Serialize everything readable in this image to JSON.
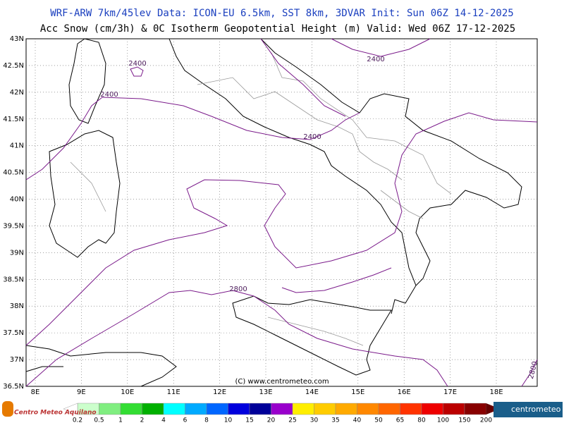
{
  "header": {
    "line1": "WRF-ARW 7km/45lev  Data: ICON-EU 6.5km, SST 8km, 3DVAR  Init: Sun 06Z 14-12-2025",
    "line2": "Acc Snow (cm/3h) & 0C Isotherm Geopotential Height (m)  Valid: Wed 06Z 17-12-2025"
  },
  "map": {
    "lat_labels": [
      "43N",
      "42.5N",
      "42N",
      "41.5N",
      "41N",
      "40.5N",
      "40N",
      "39.5N",
      "39N",
      "38.5N",
      "38N",
      "37.5N",
      "37N",
      "36.5N"
    ],
    "lon_labels": [
      "8E",
      "9E",
      "10E",
      "11E",
      "12E",
      "13E",
      "14E",
      "15E",
      "16E",
      "17E",
      "18E"
    ],
    "contour_labels": [
      "2400",
      "2400",
      "2400",
      "2400",
      "2800",
      "2800"
    ],
    "copyright": "(C) www.centrometeo.com"
  },
  "legend": {
    "labels": [
      "0.2",
      "0.5",
      "1",
      "2",
      "4",
      "6",
      "8",
      "10",
      "15",
      "20",
      "25",
      "30",
      "35",
      "40",
      "50",
      "65",
      "80",
      "100",
      "150",
      "200"
    ],
    "colors": [
      "#ccffcc",
      "#80ee80",
      "#33dd33",
      "#00b000",
      "#00ffff",
      "#00aaff",
      "#0066ff",
      "#0000dd",
      "#000099",
      "#9900cc",
      "#ffee00",
      "#ffcc00",
      "#ffaa00",
      "#ff8800",
      "#ff6600",
      "#ff3300",
      "#ee0000",
      "#bb0000",
      "#880000",
      "#660000"
    ]
  },
  "logos": {
    "left": "Centro Meteo Aquilano",
    "right": "centrometeo"
  }
}
